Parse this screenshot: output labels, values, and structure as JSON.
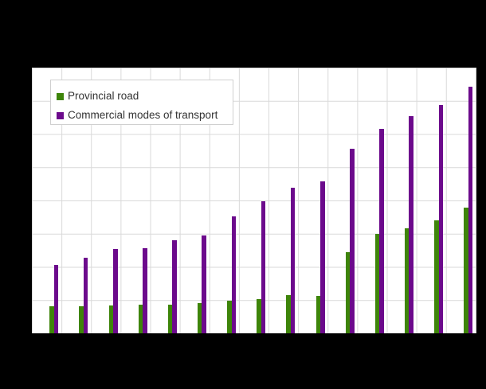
{
  "chart_data": {
    "type": "bar",
    "title": "",
    "categories": [
      "",
      "",
      "",
      "",
      "",
      "",
      "",
      "",
      "",
      "",
      "",
      "",
      "",
      "",
      ""
    ],
    "n_groups": 15,
    "series": [
      {
        "name": "Provincial road",
        "color": "#3E850A",
        "values": [
          0.81,
          0.81,
          0.84,
          0.87,
          0.86,
          0.91,
          0.98,
          1.03,
          1.15,
          1.13,
          2.45,
          2.99,
          3.17,
          3.41,
          3.79
        ]
      },
      {
        "name": "Commercial modes of transport",
        "color": "#6C0A8C",
        "values": [
          2.05,
          2.28,
          2.53,
          2.56,
          2.8,
          2.95,
          3.53,
          3.98,
          4.38,
          4.58,
          5.56,
          6.15,
          6.54,
          6.87,
          7.43
        ]
      }
    ],
    "xlabel": "",
    "ylabel": "",
    "ylim": [
      0,
      8
    ],
    "grid": "on",
    "gridline_rows": 8,
    "gridline_cols": 15,
    "axis_tick_labels_visible": false,
    "legend_position": "top-left-inside",
    "values_unit": "gridline intervals (axis labels not visible in image)"
  },
  "legend": {
    "items": [
      {
        "label": "Provincial road",
        "swatch_color": "#3E850A"
      },
      {
        "label": "Commercial modes of transport",
        "swatch_color": "#6C0A8C"
      }
    ]
  },
  "colors": {
    "page_background": "#000000",
    "plot_background": "#FFFFFF",
    "gridline": "#D9D9D9",
    "legend_border": "#D0D0D0",
    "legend_text": "#333333"
  }
}
